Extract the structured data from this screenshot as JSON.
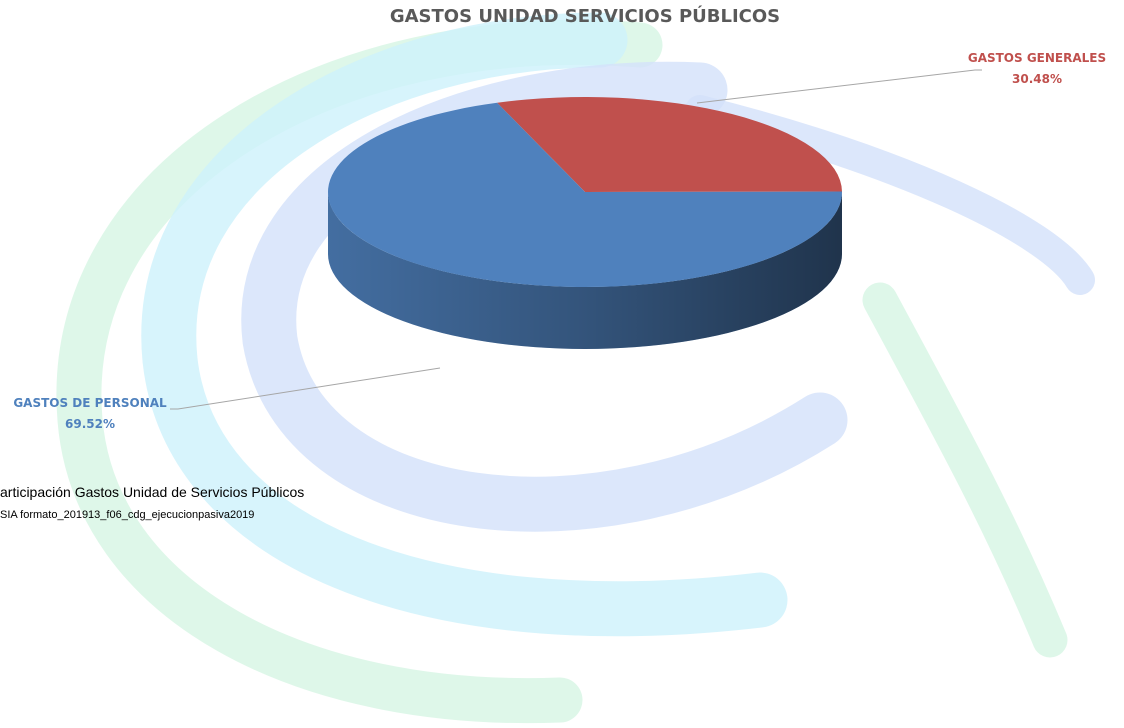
{
  "chart_data": {
    "type": "pie3d",
    "title": "GASTOS UNIDAD SERVICIOS PÚBLICOS",
    "categories": [
      "GASTOS GENERALES",
      "GASTOS DE PERSONAL"
    ],
    "values": [
      30.48,
      69.52
    ],
    "value_labels": [
      "30.48%",
      "69.52%"
    ],
    "colors": [
      "#c0504d",
      "#4f81bd"
    ]
  },
  "caption": {
    "title": "articipación Gastos Unidad de Servicios Públicos",
    "source": "SIA formato_201913_f06_cdg_ejecucionpasiva2019"
  }
}
